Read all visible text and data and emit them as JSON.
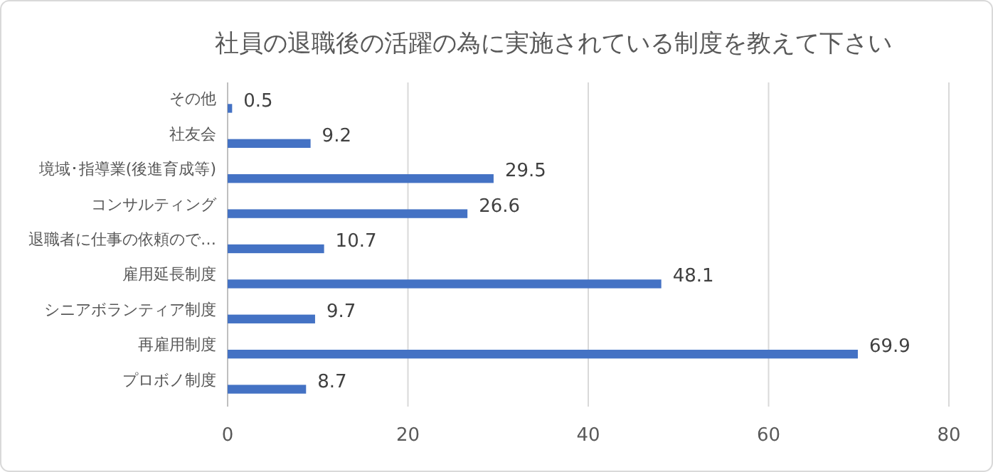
{
  "chart_data": {
    "type": "bar",
    "orientation": "horizontal",
    "title": "社員の退職後の活躍の為に実施されている制度を教えて下さい",
    "categories": [
      "その他",
      "社友会",
      "境域･指導業(後進育成等)",
      "コンサルティング",
      "退職者に仕事の依頼ので…",
      "雇用延長制度",
      "シニアボランティア制度",
      "再雇用制度",
      "プロボノ制度"
    ],
    "values": [
      0.5,
      9.2,
      29.5,
      26.6,
      10.7,
      48.1,
      9.7,
      69.9,
      8.7
    ],
    "color": "#4472c4",
    "xlim": [
      0,
      80
    ],
    "xticks": [
      0,
      20,
      40,
      60,
      80
    ],
    "grid": "x",
    "data_labels": true
  }
}
